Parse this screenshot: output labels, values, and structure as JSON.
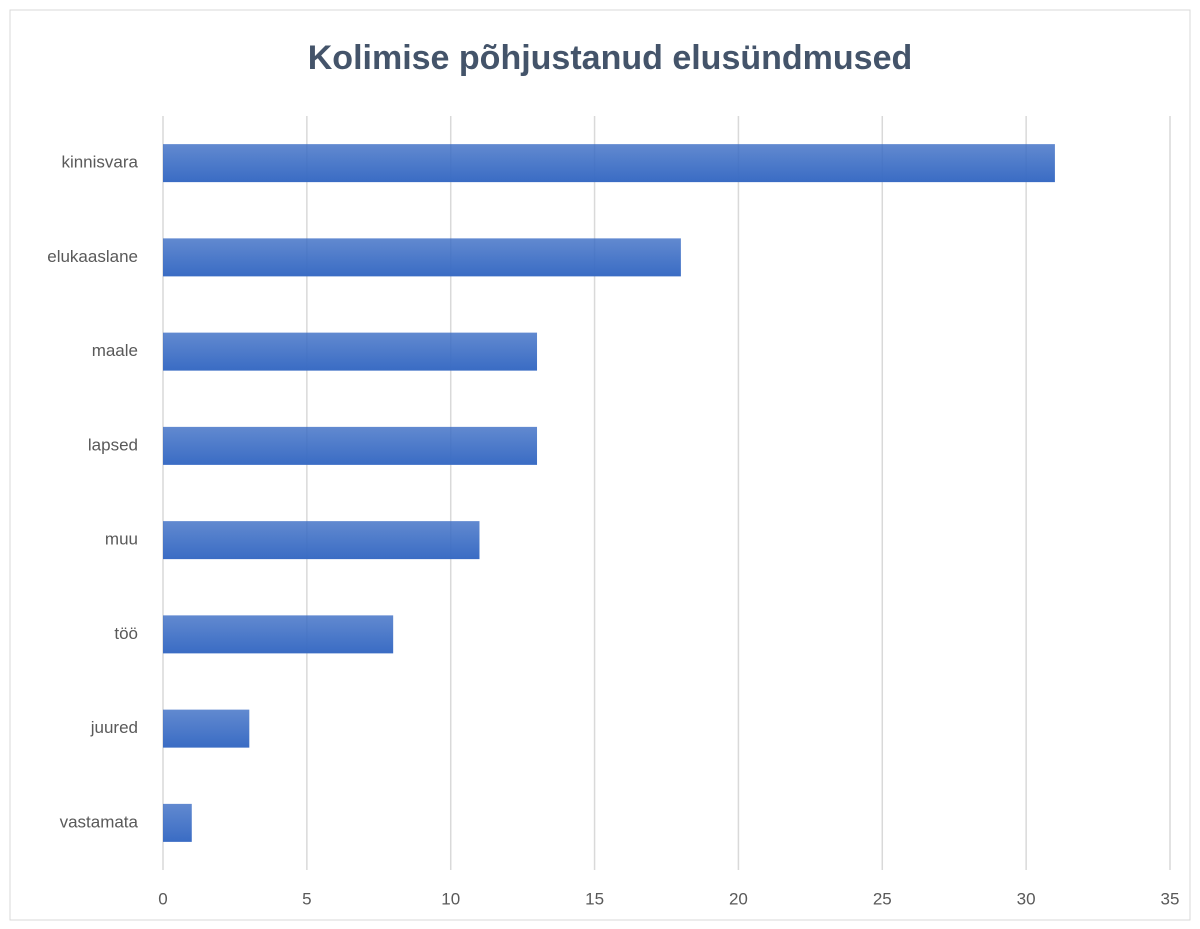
{
  "chart_data": {
    "type": "barh",
    "title": "Kolimise põhjustanud elusündmused",
    "categories": [
      "kinnisvara",
      "elukaaslane",
      "maale",
      "lapsed",
      "muu",
      "töö",
      "juured",
      "vastamata"
    ],
    "values": [
      31,
      18,
      13,
      13,
      11,
      8,
      3,
      1
    ],
    "color": "#3a6cc4",
    "xlim": [
      0,
      35
    ],
    "xticks": [
      0,
      5,
      10,
      15,
      20,
      25,
      30,
      35
    ],
    "grid": true
  }
}
